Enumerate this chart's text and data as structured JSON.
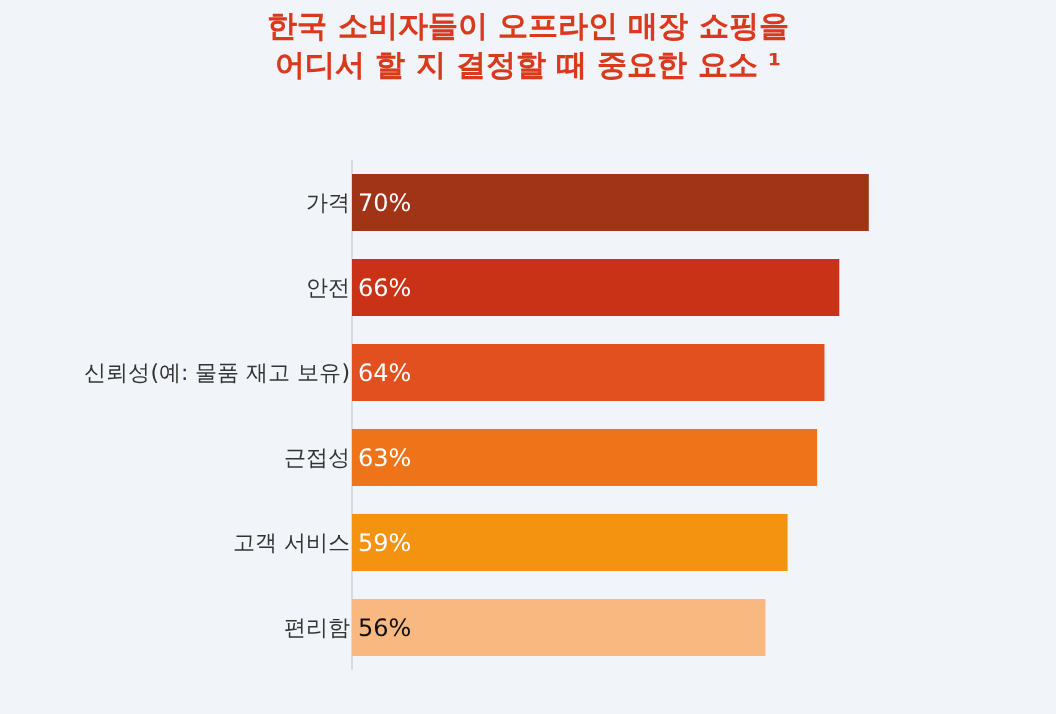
{
  "chart_data": {
    "type": "bar",
    "orientation": "horizontal",
    "title": "한국 소비자들이 오프라인 매장 쇼핑을 어디서 할 지 결정할 때 중요한 요소 ¹",
    "categories": [
      "가격",
      "안전",
      "신뢰성(예: 물품 재고 보유)",
      "근접성",
      "고객 서비스",
      "편리함"
    ],
    "values": [
      70,
      66,
      64,
      63,
      59,
      56
    ],
    "value_labels": [
      "70%",
      "66%",
      "64%",
      "63%",
      "59%",
      "56%"
    ],
    "colors": [
      "#a13416",
      "#c93216",
      "#e2501f",
      "#ef7419",
      "#f4930f",
      "#f9b880"
    ],
    "grid": false,
    "legend": false
  }
}
